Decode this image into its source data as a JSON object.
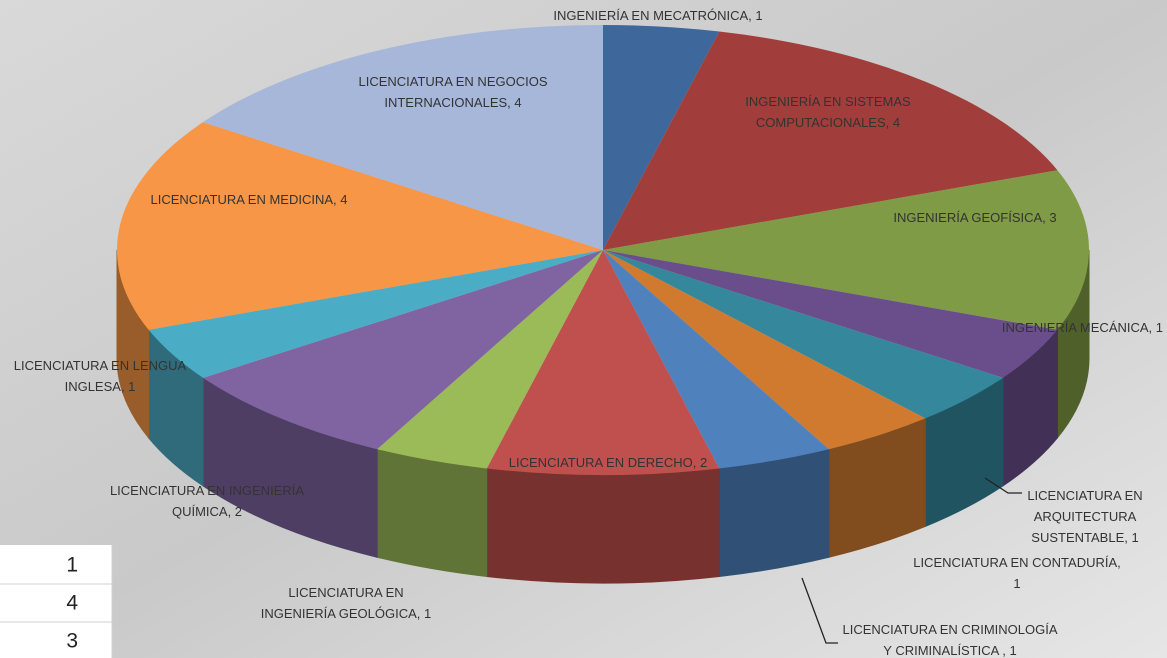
{
  "chart_data": {
    "type": "pie3d",
    "categories": [
      [
        "INGENIERÍA EN MECATRÓNICA, 1"
      ],
      [
        "INGENIERÍA EN SISTEMAS",
        "COMPUTACIONALES, 4"
      ],
      [
        "INGENIERÍA GEOFÍSICA, 3"
      ],
      [
        "INGENIERÍA MECÁNICA, 1"
      ],
      [
        "LICENCIATURA EN",
        "ARQUITECTURA",
        "SUSTENTABLE, 1"
      ],
      [
        "LICENCIATURA EN CONTADURÍA,",
        "1"
      ],
      [
        "LICENCIATURA EN CRIMINOLOGÍA",
        "Y CRIMINALÍSTICA , 1"
      ],
      [
        "LICENCIATURA EN DERECHO, 2"
      ],
      [
        "LICENCIATURA EN",
        "INGENIERÍA GEOLÓGICA, 1"
      ],
      [
        "LICENCIATURA EN INGENIERÍA",
        "QUÍMICA, 2"
      ],
      [
        "LICENCIATURA EN LENGUA",
        "INGLESA, 1"
      ],
      [
        "LICENCIATURA EN MEDICINA, 4"
      ],
      [
        "LICENCIATURA EN NEGOCIOS",
        "INTERNACIONALES, 4"
      ]
    ],
    "values": [
      1,
      4,
      3,
      1,
      1,
      1,
      1,
      2,
      1,
      2,
      1,
      4,
      4
    ],
    "colors": [
      "#3e679b",
      "#a13e3b",
      "#7f9b45",
      "#6a4e8b",
      "#35879c",
      "#d07a30",
      "#4f81bd",
      "#c0504d",
      "#9bbb59",
      "#8064a2",
      "#4bacc6",
      "#f79646",
      "#a6b7da"
    ]
  },
  "table_cells": [
    1,
    4,
    3
  ]
}
